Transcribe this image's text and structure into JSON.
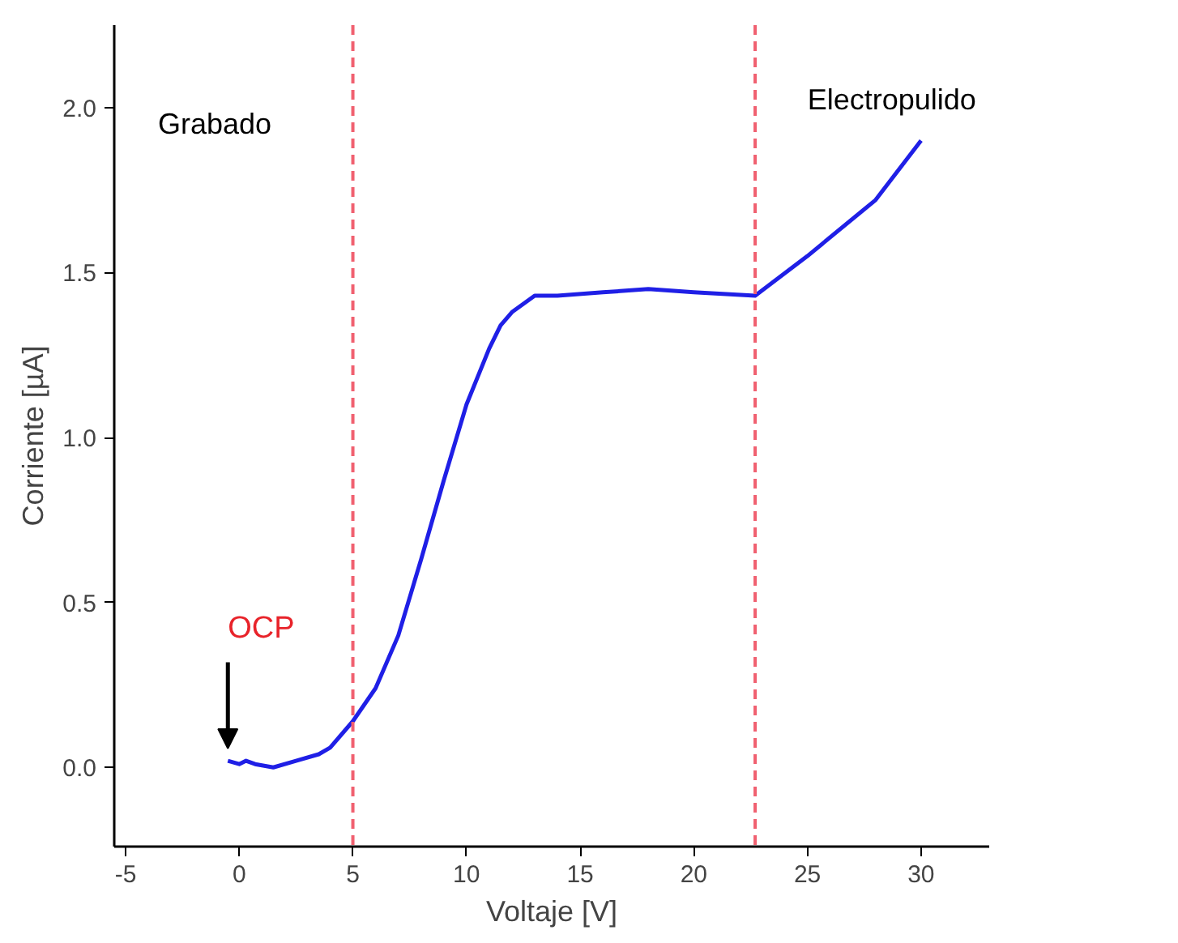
{
  "chart_data": {
    "type": "line",
    "xlabel": "Voltaje [V]",
    "ylabel": "Corriente [µA]",
    "x": [
      -0.5,
      0,
      0.3,
      0.7,
      1.5,
      2.5,
      3.5,
      4,
      5,
      6,
      7,
      8,
      9,
      10,
      11,
      11.5,
      12,
      13,
      14,
      16,
      18,
      20,
      22.7,
      25,
      28,
      30
    ],
    "series": [
      {
        "color": "#1f1fe6",
        "values": [
          0.02,
          0.01,
          0.02,
          0.01,
          0.0,
          0.02,
          0.04,
          0.06,
          0.14,
          0.24,
          0.4,
          0.63,
          0.87,
          1.1,
          1.27,
          1.34,
          1.38,
          1.43,
          1.43,
          1.44,
          1.45,
          1.44,
          1.43,
          1.55,
          1.72,
          1.9
        ]
      }
    ],
    "xlim": [
      -5.5,
      33
    ],
    "ylim": [
      -0.24,
      2.25
    ],
    "xticks": [
      -5,
      0,
      5,
      10,
      15,
      20,
      25,
      30
    ],
    "yticks": [
      {
        "value": 0,
        "label": "0.0"
      },
      {
        "value": 0.5,
        "label": "0.5"
      },
      {
        "value": 1,
        "label": "1.0"
      },
      {
        "value": 1.5,
        "label": "1.5"
      },
      {
        "value": 2,
        "label": "2.0"
      }
    ],
    "ref_lines": [
      {
        "axis": "x",
        "value": 5,
        "color": "#f06070",
        "line_style": "dashed"
      },
      {
        "axis": "x",
        "value": 22.7,
        "color": "#f06070",
        "line_style": "dashed"
      }
    ],
    "annotations": [
      "Grabado",
      "Electropulido",
      {
        "text": "OCP",
        "x": -0.5,
        "y": 0.02
      }
    ],
    "grid": false,
    "marker": "none",
    "line_style": "solid"
  }
}
